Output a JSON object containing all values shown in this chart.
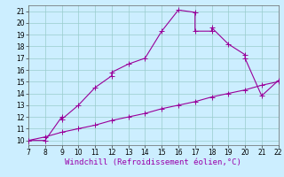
{
  "x_wc": [
    7,
    8,
    9,
    9,
    10,
    11,
    12,
    12,
    13,
    14,
    15,
    16,
    17,
    17,
    18,
    18,
    19,
    20,
    20,
    21,
    22
  ],
  "y_wc": [
    10,
    10,
    12,
    11.8,
    13,
    14.5,
    15.5,
    15.8,
    16.5,
    17,
    19.3,
    21.1,
    20.9,
    19.3,
    19.3,
    19.6,
    18.2,
    17.3,
    17,
    13.8,
    15.1
  ],
  "x_ref": [
    7,
    8,
    9,
    10,
    11,
    12,
    13,
    14,
    15,
    16,
    17,
    18,
    19,
    20,
    21,
    22
  ],
  "y_ref": [
    10,
    10.3,
    10.7,
    11.0,
    11.3,
    11.7,
    12.0,
    12.3,
    12.7,
    13.0,
    13.3,
    13.7,
    14.0,
    14.3,
    14.7,
    15.0
  ],
  "line_color": "#990099",
  "bg_color": "#cceeff",
  "grid_color": "#99cccc",
  "xlabel": "Windchill (Refroidissement éolien,°C)",
  "xlabel_color": "#9900aa",
  "xlabel_fontsize": 6.5,
  "xticks": [
    7,
    8,
    9,
    10,
    11,
    12,
    13,
    14,
    15,
    16,
    17,
    18,
    19,
    20,
    21,
    22
  ],
  "yticks": [
    10,
    11,
    12,
    13,
    14,
    15,
    16,
    17,
    18,
    19,
    20,
    21
  ],
  "xlim": [
    7,
    22
  ],
  "ylim": [
    9.6,
    21.5
  ],
  "tick_fontsize": 5.5,
  "linewidth": 0.8,
  "marker_size": 4
}
